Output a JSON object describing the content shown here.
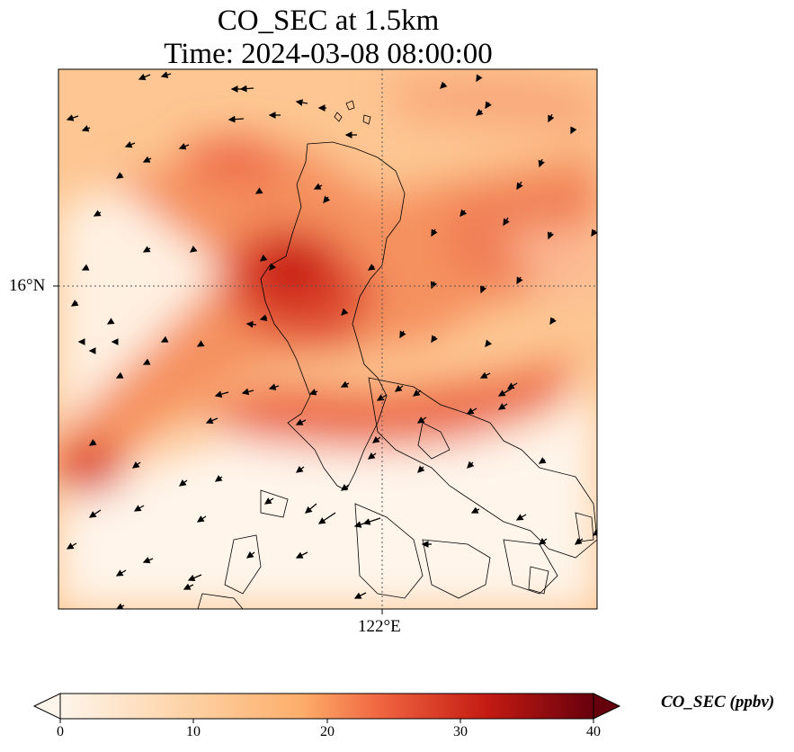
{
  "title": {
    "line1": "CO_SEC at 1.5km",
    "line2": "Time: 2024-03-08 08:00:00"
  },
  "map": {
    "lat_tick": "16°N",
    "lon_tick": "122°E",
    "colormap": [
      "#fff5eb",
      "#fdd0a2",
      "#fdae6b",
      "#f16913",
      "#d94801",
      "#a50f15",
      "#67000d"
    ]
  },
  "colorbar": {
    "label": "CO_SEC (ppbv)",
    "ticks": [
      "0",
      "10",
      "20",
      "30",
      "40"
    ],
    "min": 0,
    "max": 40
  }
}
